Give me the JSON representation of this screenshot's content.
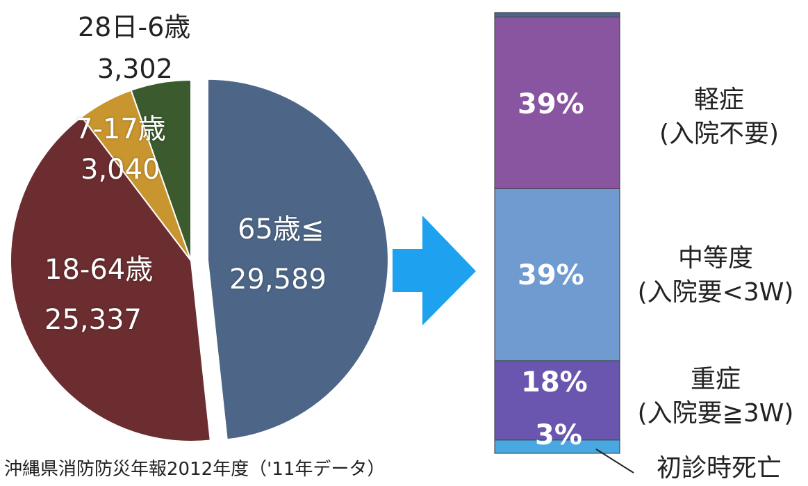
{
  "chart_data": [
    {
      "type": "pie",
      "slices": [
        {
          "label": "65歳≦",
          "value": 29589,
          "value_text": "29,589",
          "color": "#4d6688"
        },
        {
          "label": "18-64歳",
          "value": 25337,
          "value_text": "25,337",
          "color": "#6b2d2f"
        },
        {
          "label": "7-17歳",
          "value": 3040,
          "value_text": "3,040",
          "color": "#c8952f"
        },
        {
          "label": "28日-6歳",
          "value": 3302,
          "value_text": "3,302",
          "color": "#3b5a2e"
        }
      ]
    },
    {
      "type": "bar",
      "stacked": true,
      "segments": [
        {
          "label": "軽症",
          "sub": "(入院不要)",
          "value": 39,
          "value_text": "39%",
          "color": "#8a55a0"
        },
        {
          "label": "中等度",
          "sub": "(入院要<3W)",
          "value": 39,
          "value_text": "39%",
          "color": "#6f9bd1"
        },
        {
          "label": "重症",
          "sub": "(入院要≧3W)",
          "value": 18,
          "value_text": "18%",
          "color": "#6a56ae"
        },
        {
          "label": "初診時死亡",
          "sub": "",
          "value": 3,
          "value_text": "3%",
          "color": "#49a8e2"
        }
      ]
    }
  ],
  "arrow_color": "#1ea1ef",
  "source_note": "沖縄県消防防災年報2012年度（'11年データ）"
}
